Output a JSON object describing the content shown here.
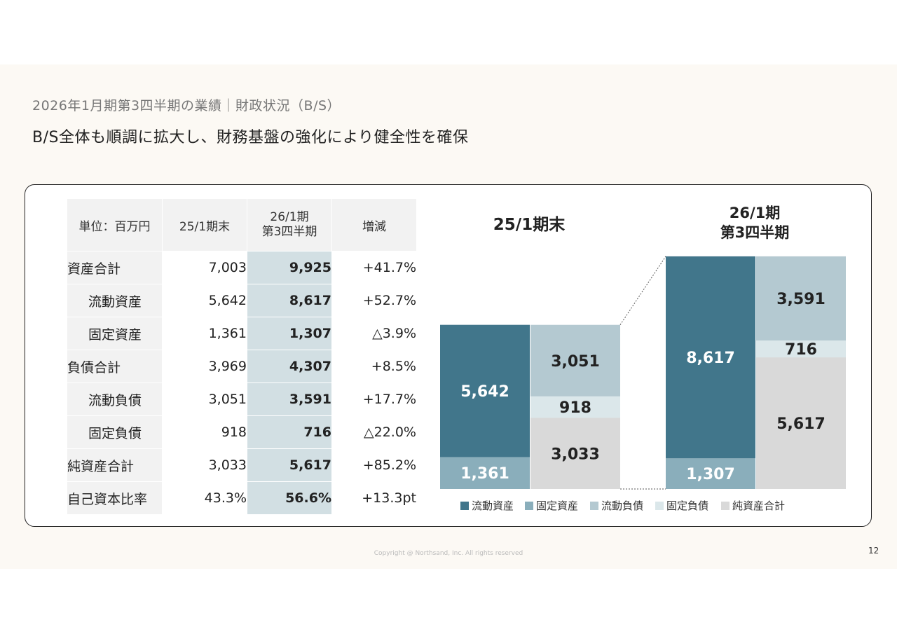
{
  "header": {
    "subtitle": "2026年1月期第3四半期の業績｜財政状況（B/S）",
    "headline": "B/S全体も順調に拡大し、財務基盤の強化により健全性を確保"
  },
  "table": {
    "unit_label": "単位：百万円",
    "col_a": "25/1期末",
    "col_b_line1": "26/1期",
    "col_b_line2": "第3四半期",
    "col_d": "増減",
    "rows": [
      {
        "label": "資産合計",
        "a": "7,003",
        "b": "9,925",
        "d": "+41.7%"
      },
      {
        "label": "流動資産",
        "a": "5,642",
        "b": "8,617",
        "d": "+52.7%"
      },
      {
        "label": "固定資産",
        "a": "1,361",
        "b": "1,307",
        "d": "△3.9%"
      },
      {
        "label": "負債合計",
        "a": "3,969",
        "b": "4,307",
        "d": "+8.5%"
      },
      {
        "label": "流動負債",
        "a": "3,051",
        "b": "3,591",
        "d": "+17.7%"
      },
      {
        "label": "固定負債",
        "a": "918",
        "b": "716",
        "d": "△22.0%"
      },
      {
        "label": "純資産合計",
        "a": "3,033",
        "b": "5,617",
        "d": "+85.2%"
      },
      {
        "label": "自己資本比率",
        "a": "43.3%",
        "b": "56.6%",
        "d": "+13.3pt"
      }
    ]
  },
  "chart_data": {
    "type": "bar",
    "stacked": true,
    "title_left": "25/1期末",
    "title_right_line1": "26/1期",
    "title_right_line2": "第3四半期",
    "periods": [
      {
        "name": "25/1期末",
        "assets": {
          "current": 5642,
          "fixed": 1361
        },
        "liabilities_equity": {
          "current_liab": 3051,
          "fixed_liab": 918,
          "net_assets": 3033
        }
      },
      {
        "name": "26/1期第3四半期",
        "assets": {
          "current": 8617,
          "fixed": 1307
        },
        "liabilities_equity": {
          "current_liab": 3591,
          "fixed_liab": 716,
          "net_assets": 5617
        }
      }
    ],
    "legend": [
      "流動資産",
      "固定資産",
      "流動負債",
      "固定負債",
      "純資産合計"
    ],
    "labels": {
      "p0_current": "5,642",
      "p0_fixed": "1,361",
      "p0_cl": "3,051",
      "p0_fl": "918",
      "p0_na": "3,033",
      "p1_current": "8,617",
      "p1_fixed": "1,307",
      "p1_cl": "3,591",
      "p1_fl": "716",
      "p1_na": "5,617"
    },
    "colors": {
      "current": "#41768b",
      "fixed": "#8aaebb",
      "current_liab": "#b4c9d1",
      "fixed_liab": "#dbe7ea",
      "net_assets": "#d9d9d9"
    }
  },
  "footer": {
    "copyright": "Copyright @ Northsand, Inc. All rights reserved",
    "page": "12"
  }
}
